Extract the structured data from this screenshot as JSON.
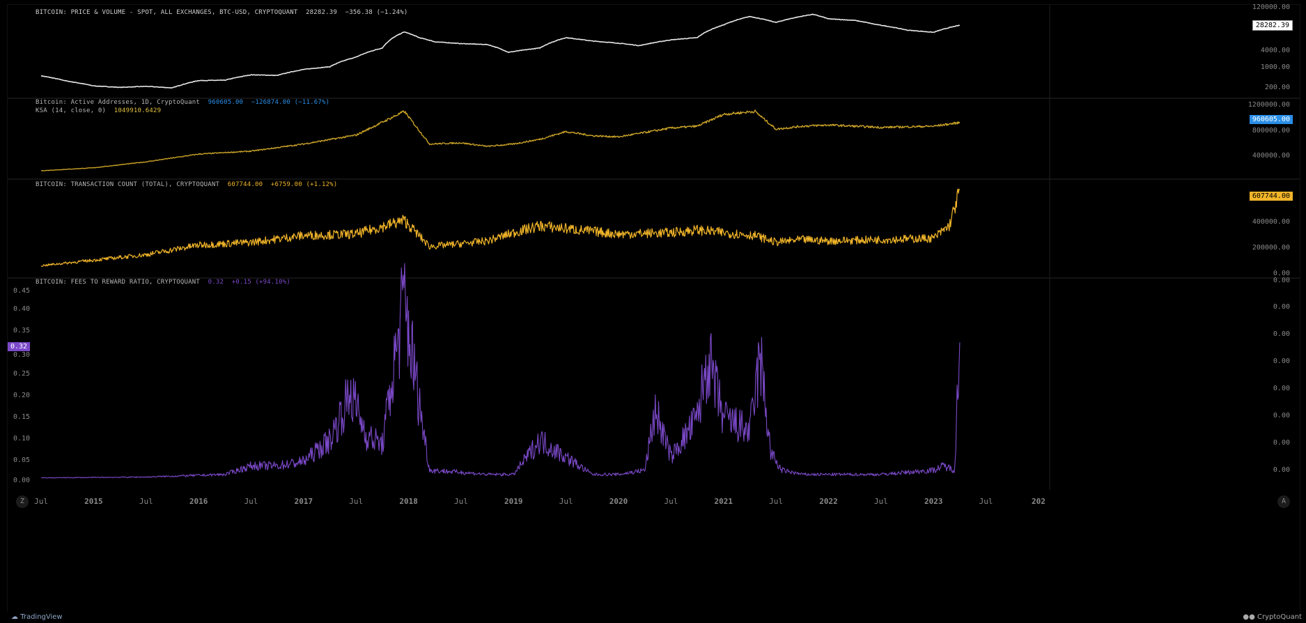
{
  "colors": {
    "background": "#000000",
    "price": "#e6e6e6",
    "active_addresses": "#c9a227",
    "tx_count": "#f0b429",
    "fees": "#7b49c9",
    "active_tag": "#2a8fe8",
    "grid": "#1a1a1a"
  },
  "panes": [
    {
      "label": "BITCOIN: PRICE & VOLUME - SPOT, ALL EXCHANGES, BTC-USD, CRYPTOQUANT",
      "value": "28282.39",
      "change": "−356.38 (−1.24%)",
      "last_tag": "28282.39",
      "y_ticks": [
        "120000.00",
        "4000.00",
        "1000.00",
        "200.00"
      ]
    },
    {
      "label": "Bitcoin: Active Addresses, 1D, CryptoQuant",
      "value": "960605.00",
      "change": "−126874.00 (−11.67%)",
      "sub_label": "KSA (14, close, 0)",
      "sub_value": "1049910.6429",
      "last_tag": "960605.00",
      "y_ticks": [
        "1200000.00",
        "800000.00",
        "400000.00"
      ]
    },
    {
      "label": "BITCOIN: TRANSACTION COUNT (TOTAL), CRYPTOQUANT",
      "value": "607744.00",
      "change": "+6759.00 (+1.12%)",
      "last_tag": "607744.00",
      "y_ticks": [
        "400000.00",
        "200000.00",
        "0.00"
      ]
    },
    {
      "label": "BITCOIN: FEES TO REWARD RATIO, CRYPTOQUANT",
      "value": "0.32",
      "change": "+0.15 (+94.10%)",
      "last_tag": "0.32",
      "left_ticks": [
        "0.45",
        "0.40",
        "0.35",
        "0.30",
        "0.25",
        "0.20",
        "0.15",
        "0.10",
        "0.05",
        "0.00"
      ],
      "right_ticks": [
        "0.00",
        "0.00",
        "0.00",
        "0.00",
        "0.00",
        "0.00",
        "0.00",
        "0.00"
      ]
    }
  ],
  "x_axis": {
    "labels": [
      {
        "text": "Jul",
        "major": false
      },
      {
        "text": "2015",
        "major": true
      },
      {
        "text": "Jul",
        "major": false
      },
      {
        "text": "2016",
        "major": true
      },
      {
        "text": "Jul",
        "major": false
      },
      {
        "text": "2017",
        "major": true
      },
      {
        "text": "Jul",
        "major": false
      },
      {
        "text": "2018",
        "major": true
      },
      {
        "text": "Jul",
        "major": false
      },
      {
        "text": "2019",
        "major": true
      },
      {
        "text": "Jul",
        "major": false
      },
      {
        "text": "2020",
        "major": true
      },
      {
        "text": "Jul",
        "major": false
      },
      {
        "text": "2021",
        "major": true
      },
      {
        "text": "Jul",
        "major": false
      },
      {
        "text": "2022",
        "major": true
      },
      {
        "text": "Jul",
        "major": false
      },
      {
        "text": "2023",
        "major": true
      },
      {
        "text": "Jul",
        "major": false
      },
      {
        "text": "202",
        "major": true
      }
    ]
  },
  "footer": {
    "left_brand": "TradingView",
    "right_brand": "CryptoQuant",
    "zoom_button": "Z",
    "auto_button": "A"
  },
  "chart_data": [
    {
      "type": "line",
      "title": "BITCOIN: PRICE & VOLUME - SPOT, ALL EXCHANGES, BTC-USD, CRYPTOQUANT",
      "y_scale": "log",
      "x": [
        2014.5,
        2014.75,
        2015.0,
        2015.25,
        2015.5,
        2015.75,
        2016.0,
        2016.25,
        2016.5,
        2016.75,
        2017.0,
        2017.25,
        2017.5,
        2017.75,
        2017.96,
        2018.1,
        2018.25,
        2018.5,
        2018.75,
        2018.95,
        2019.25,
        2019.5,
        2019.75,
        2020.0,
        2020.2,
        2020.5,
        2020.75,
        2021.0,
        2021.25,
        2021.5,
        2021.85,
        2022.0,
        2022.25,
        2022.45,
        2022.75,
        2023.0,
        2023.25
      ],
      "series": [
        {
          "values": [
            600,
            400,
            280,
            250,
            270,
            240,
            420,
            430,
            650,
            620,
            980,
            1200,
            2500,
            5000,
            17000,
            11000,
            8000,
            7000,
            6500,
            3600,
            5000,
            11000,
            8500,
            7200,
            6000,
            9300,
            11000,
            29000,
            55000,
            35000,
            65000,
            46000,
            41000,
            30000,
            19500,
            16500,
            28282
          ]
        }
      ]
    },
    {
      "type": "line",
      "title": "Bitcoin: Active Addresses, 1D, CryptoQuant",
      "x": [
        2014.5,
        2015.0,
        2015.5,
        2016.0,
        2016.5,
        2017.0,
        2017.5,
        2017.96,
        2018.2,
        2018.5,
        2018.75,
        2019.0,
        2019.25,
        2019.5,
        2019.75,
        2020.0,
        2020.5,
        2020.75,
        2021.0,
        2021.3,
        2021.5,
        2021.75,
        2022.0,
        2022.5,
        2023.0,
        2023.25
      ],
      "series": [
        {
          "values": [
            150000,
            200000,
            300000,
            430000,
            480000,
            600000,
            750000,
            1150000,
            600000,
            620000,
            560000,
            600000,
            680000,
            810000,
            740000,
            720000,
            870000,
            900000,
            1100000,
            1150000,
            850000,
            900000,
            920000,
            880000,
            900000,
            960605
          ]
        }
      ]
    },
    {
      "type": "line",
      "title": "BITCOIN: TRANSACTION COUNT (TOTAL), CRYPTOQUANT",
      "x": [
        2014.5,
        2015.0,
        2015.5,
        2016.0,
        2016.5,
        2017.0,
        2017.5,
        2017.96,
        2018.2,
        2018.5,
        2018.75,
        2019.0,
        2019.25,
        2019.5,
        2019.75,
        2020.0,
        2020.5,
        2020.75,
        2021.0,
        2021.3,
        2021.5,
        2021.75,
        2022.0,
        2022.5,
        2023.0,
        2023.15,
        2023.25
      ],
      "series": [
        {
          "values": [
            60000,
            100000,
            140000,
            210000,
            230000,
            280000,
            290000,
            390000,
            200000,
            220000,
            240000,
            300000,
            350000,
            330000,
            310000,
            290000,
            300000,
            320000,
            300000,
            280000,
            230000,
            250000,
            240000,
            250000,
            260000,
            350000,
            607744
          ]
        }
      ]
    },
    {
      "type": "line",
      "title": "BITCOIN: FEES TO REWARD RATIO, CRYPTOQUANT",
      "ylim": [
        0,
        0.45
      ],
      "x": [
        2014.5,
        2015.0,
        2015.5,
        2016.0,
        2016.25,
        2016.5,
        2016.75,
        2017.0,
        2017.25,
        2017.45,
        2017.6,
        2017.75,
        2017.96,
        2018.05,
        2018.2,
        2018.5,
        2018.75,
        2019.0,
        2019.25,
        2019.5,
        2019.75,
        2020.0,
        2020.25,
        2020.35,
        2020.5,
        2020.75,
        2020.85,
        2021.0,
        2021.25,
        2021.35,
        2021.45,
        2021.55,
        2021.75,
        2022.0,
        2022.5,
        2023.0,
        2023.1,
        2023.2,
        2023.25
      ],
      "series": [
        {
          "values": [
            0.002,
            0.003,
            0.004,
            0.008,
            0.01,
            0.03,
            0.03,
            0.04,
            0.09,
            0.2,
            0.1,
            0.08,
            0.42,
            0.26,
            0.02,
            0.015,
            0.01,
            0.01,
            0.09,
            0.05,
            0.01,
            0.01,
            0.02,
            0.16,
            0.05,
            0.14,
            0.28,
            0.14,
            0.11,
            0.28,
            0.06,
            0.02,
            0.01,
            0.01,
            0.01,
            0.02,
            0.03,
            0.02,
            0.32
          ]
        }
      ]
    }
  ]
}
